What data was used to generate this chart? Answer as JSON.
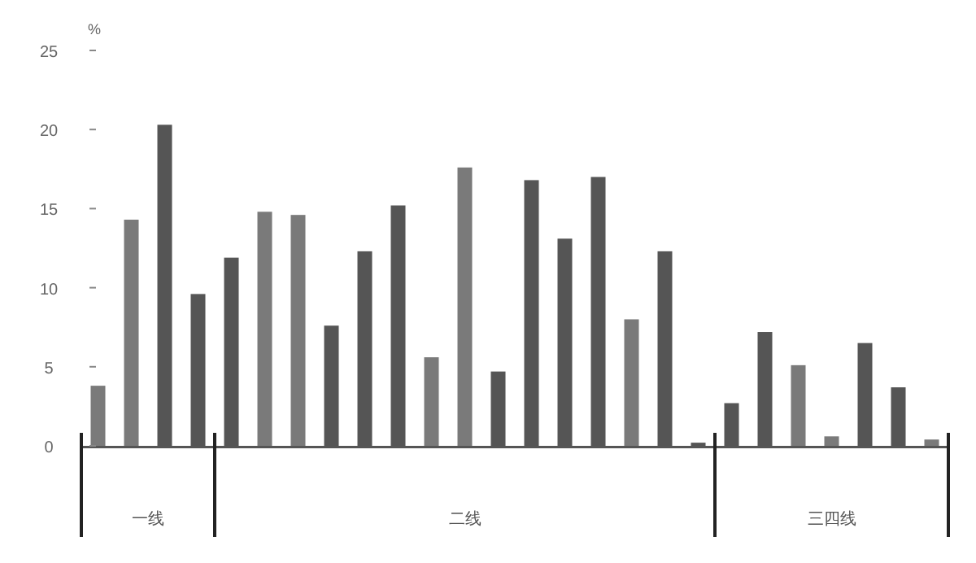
{
  "chart_data": {
    "type": "bar",
    "ylabel": "%",
    "ylim": [
      0,
      25
    ],
    "yticks": [
      0,
      5,
      10,
      15,
      20,
      25
    ],
    "grid": false,
    "categories": [
      null,
      null,
      null,
      null,
      null,
      null,
      null,
      null,
      null,
      null,
      null,
      null,
      null,
      null,
      null,
      null,
      null,
      null,
      null,
      null,
      null,
      null,
      null,
      null,
      null,
      null
    ],
    "values": [
      3.8,
      14.3,
      20.3,
      9.6,
      11.9,
      14.8,
      14.6,
      7.6,
      12.3,
      15.2,
      5.6,
      17.6,
      4.7,
      16.8,
      13.1,
      17.0,
      8.0,
      12.3,
      0.2,
      2.7,
      7.2,
      5.1,
      0.6,
      6.5,
      3.7,
      0.4
    ],
    "colors": [
      "#7a7a7a",
      "#7a7a7a",
      "#555555",
      "#555555",
      "#555555",
      "#7a7a7a",
      "#7a7a7a",
      "#555555",
      "#555555",
      "#555555",
      "#7a7a7a",
      "#7a7a7a",
      "#555555",
      "#555555",
      "#555555",
      "#555555",
      "#7a7a7a",
      "#555555",
      "#555555",
      "#555555",
      "#555555",
      "#7a7a7a",
      "#7a7a7a",
      "#555555",
      "#555555",
      "#7a7a7a"
    ],
    "annotations": [
      "一线",
      "二线",
      "三四线"
    ]
  }
}
